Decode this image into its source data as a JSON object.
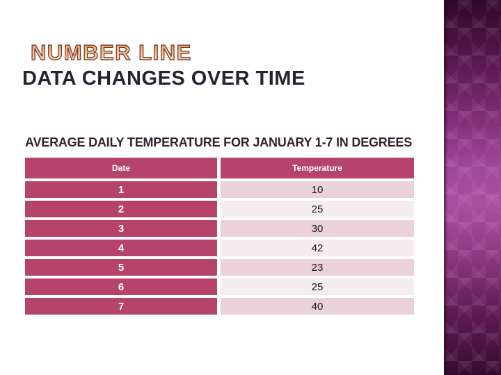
{
  "slide": {
    "kicker": "NUMBER LINE",
    "title": "DATA CHANGES OVER TIME"
  },
  "chart_data": {
    "type": "table",
    "title": "AVERAGE DAILY TEMPERATURE FOR JANUARY 1-7 IN DEGREES",
    "columns": [
      "Date",
      "Temperature"
    ],
    "rows": [
      [
        1,
        10
      ],
      [
        2,
        25
      ],
      [
        3,
        30
      ],
      [
        4,
        42
      ],
      [
        5,
        23
      ],
      [
        6,
        25
      ],
      [
        7,
        40
      ]
    ]
  },
  "colors": {
    "accent_magenta": "#b5436c",
    "temp_row_odd": "#ead1da",
    "temp_row_even": "#f5ecef",
    "title_text": "#262430",
    "table_title_text": "#342130",
    "kicker_outline": "#6e3228",
    "kicker_fill_top": "#dd9157",
    "kicker_fill_bottom": "#fde7cb",
    "sidebar_dark": "#330829",
    "sidebar_light": "#a84f9e",
    "slide_background": "#ffffff"
  }
}
